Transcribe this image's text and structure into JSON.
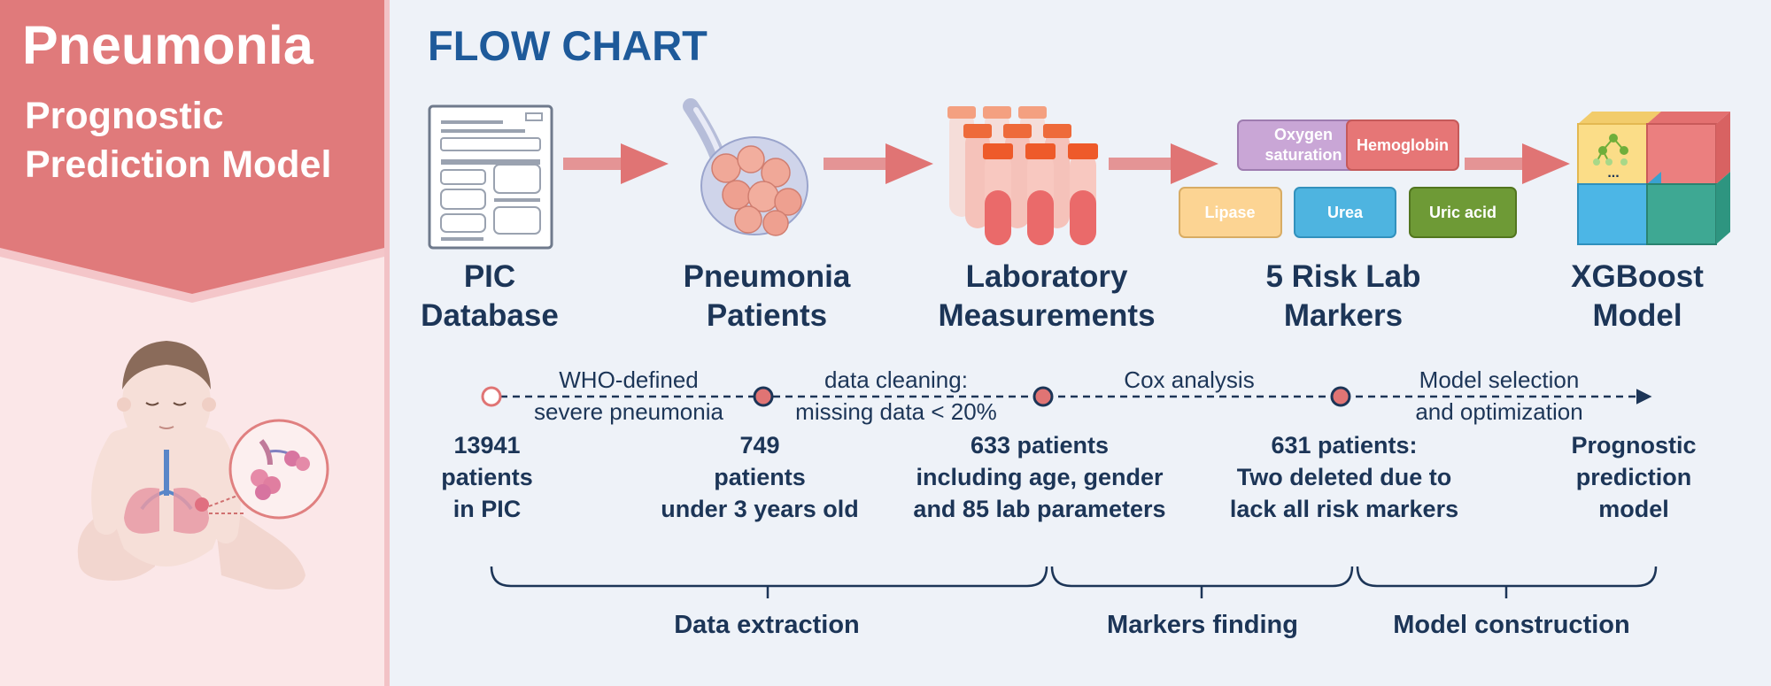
{
  "banner": {
    "title": "Pneumonia",
    "subtitle_line1": "Prognostic",
    "subtitle_line2": "Prediction Model"
  },
  "header": {
    "title": "FLOW CHART"
  },
  "stages": [
    {
      "line1": "PIC",
      "line2": "Database"
    },
    {
      "line1": "Pneumonia",
      "line2": "Patients"
    },
    {
      "line1": "Laboratory",
      "line2": "Measurements"
    },
    {
      "line1": "5 Risk Lab",
      "line2": "Markers"
    },
    {
      "line1": "XGBoost",
      "line2": "Model"
    }
  ],
  "markers": {
    "oxygen_line1": "Oxygen",
    "oxygen_line2": "saturation",
    "hemoglobin": "Hemoglobin",
    "lipase": "Lipase",
    "urea": "Urea",
    "uric_acid": "Uric acid"
  },
  "steps": [
    {
      "line1": "WHO-defined",
      "line2": "severe pneumonia"
    },
    {
      "line1": "data cleaning:",
      "line2": "missing data < 20%"
    },
    {
      "line1": "Cox analysis",
      "line2": ""
    },
    {
      "line1": "Model selection",
      "line2": "and optimization"
    }
  ],
  "counts": [
    {
      "line1": "13941",
      "line2": "patients",
      "line3": "in PIC"
    },
    {
      "line1": "749",
      "line2": "patients",
      "line3": "under 3 years old"
    },
    {
      "line1": "633 patients",
      "line2": "including age, gender",
      "line3": "and 85 lab parameters"
    },
    {
      "line1": "631 patients:",
      "line2": "Two deleted due to",
      "line3": "lack all risk markers"
    },
    {
      "line1": "Prognostic",
      "line2": "prediction",
      "line3": "model"
    }
  ],
  "phases": {
    "data_extraction": "Data extraction",
    "markers_finding": "Markers finding",
    "model_construction": "Model construction"
  },
  "colors": {
    "banner": "#e07a7b",
    "banner_bg": "#fbe7e8",
    "panel_bg": "#eef2f8",
    "title_blue": "#1e5a9a",
    "text_dark": "#1c3557",
    "arrow": "#e07474",
    "oxygen": "#c9a6d6",
    "hemoglobin": "#e67676",
    "lipase": "#fcd493",
    "urea": "#4eb4e0",
    "uric_acid": "#6e9a36"
  }
}
